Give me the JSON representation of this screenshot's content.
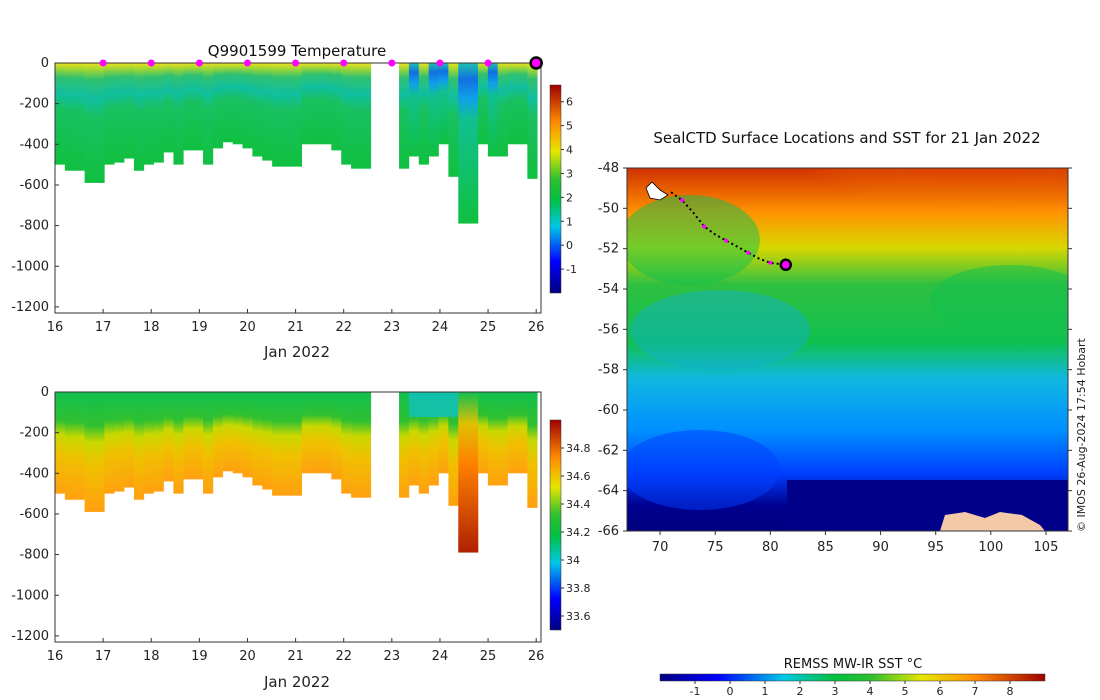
{
  "chart_data": [
    {
      "type": "heatmap",
      "id": "temp-section",
      "title": "Q9901599  Temperature",
      "xlabel": "Jan 2022",
      "xticks": [
        16,
        17,
        18,
        19,
        20,
        21,
        22,
        23,
        24,
        25,
        26
      ],
      "xlim": [
        16,
        26.1
      ],
      "yticks": [
        0,
        -200,
        -400,
        -600,
        -800,
        -1000,
        -1200
      ],
      "ylim": [
        -1230,
        0
      ],
      "colorbar": {
        "min": -2,
        "max": 6.7,
        "ticks": [
          -1,
          0,
          1,
          2,
          3,
          4,
          5,
          6
        ]
      },
      "profile_depths": [
        -500,
        -530,
        -530,
        -590,
        -590,
        -500,
        -490,
        -470,
        -530,
        -500,
        -490,
        -440,
        -500,
        -430,
        -430,
        -500,
        -420,
        -390,
        -400,
        -420,
        -460,
        -480,
        -510,
        -510,
        -510,
        -400,
        -400,
        -400,
        -430,
        -500,
        -520,
        -520,
        -520,
        -460,
        -500,
        -460,
        -400,
        -560,
        -790,
        -790,
        -400,
        -460,
        -460,
        -400,
        -400,
        -570
      ],
      "surface_fixes": [
        17,
        18,
        19,
        20,
        21,
        22,
        23,
        24,
        25
      ],
      "last_fix": 26
    },
    {
      "type": "heatmap",
      "id": "salinity-section",
      "title": "",
      "xlabel": "Jan 2022",
      "xticks": [
        16,
        17,
        18,
        19,
        20,
        21,
        22,
        23,
        24,
        25,
        26
      ],
      "xlim": [
        16,
        26.1
      ],
      "yticks": [
        0,
        -200,
        -400,
        -600,
        -800,
        -1000,
        -1200
      ],
      "ylim": [
        -1230,
        0
      ],
      "colorbar": {
        "min": 33.5,
        "max": 35.0,
        "ticks": [
          33.6,
          33.8,
          34,
          34.2,
          34.4,
          34.6,
          34.8
        ]
      }
    },
    {
      "type": "heatmap",
      "id": "sst-map",
      "title": "SealCTD Surface Locations and SST for 21 Jan 2022",
      "xticks": [
        70,
        75,
        80,
        85,
        90,
        95,
        100,
        105
      ],
      "xlim": [
        67,
        107
      ],
      "yticks": [
        -48,
        -50,
        -52,
        -54,
        -56,
        -58,
        -60,
        -62,
        -64,
        -66
      ],
      "ylim": [
        -66,
        -48
      ],
      "colorbar": {
        "label": "REMSS MW-IR SST °C",
        "min": -2,
        "max": 9,
        "ticks": [
          -1,
          0,
          1,
          2,
          3,
          4,
          5,
          6,
          7,
          8
        ]
      },
      "track": [
        [
          71,
          -49.2
        ],
        [
          72,
          -49.6
        ],
        [
          73,
          -50.2
        ],
        [
          74,
          -50.9
        ],
        [
          75,
          -51.3
        ],
        [
          76,
          -51.6
        ],
        [
          77,
          -51.9
        ],
        [
          78,
          -52.2
        ],
        [
          79,
          -52.5
        ],
        [
          80,
          -52.7
        ],
        [
          81.4,
          -52.8
        ]
      ],
      "current_fix": [
        81.4,
        -52.8
      ]
    }
  ],
  "credit": "© IMOS 26-Aug-2024 17:54 Hobart",
  "colors": {
    "fix_marker": "#ff00ff",
    "land": "#f4c9a8",
    "track": "#000000"
  }
}
